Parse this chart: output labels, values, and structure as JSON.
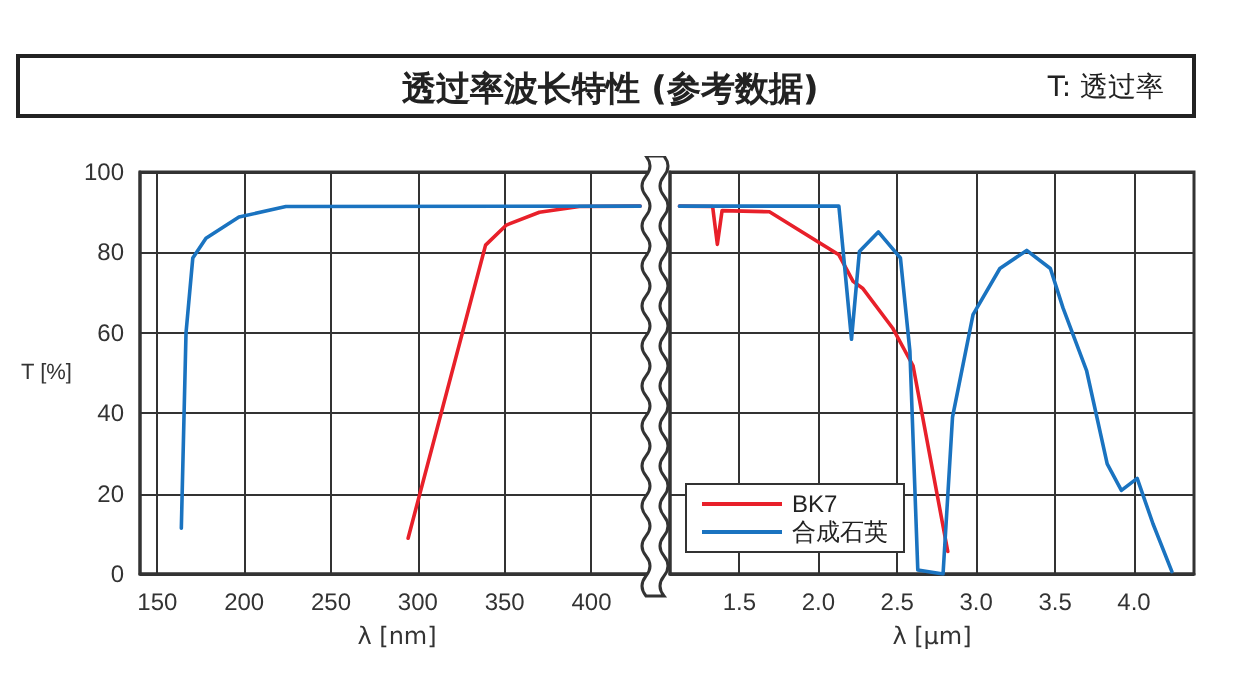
{
  "chart_data": [
    {
      "type": "line",
      "title": "透过率波长特性 (参考数据)",
      "annotations": [
        "T: 透过率"
      ],
      "xlabel": "λ [nm]",
      "ylabel": "T [%]",
      "xlim": [
        140,
        436
      ],
      "xticks": [
        150,
        200,
        250,
        300,
        350,
        400
      ],
      "ylim": [
        0,
        100
      ],
      "yticks": [
        0,
        20,
        40,
        60,
        80,
        100
      ],
      "grid": true,
      "legend": false,
      "marker": "none",
      "line_style": "solid",
      "series": [
        {
          "color": "#e8202a",
          "x": [
            294.4,
            339,
            351,
            370,
            393,
            428
          ],
          "values": [
            8.9,
            81.8,
            86.8,
            90,
            91.4,
            91.5
          ]
        },
        {
          "color": "#1a73c0",
          "x": [
            163.8,
            166.5,
            170.4,
            178,
            197,
            224,
            428
          ],
          "values": [
            11.4,
            60,
            78.6,
            83.5,
            88.8,
            91.4,
            91.5
          ]
        }
      ]
    },
    {
      "type": "line",
      "xlabel": "λ [μm]",
      "xlim": [
        1.06,
        4.38
      ],
      "xticks": [
        1.5,
        {
          "value": 2,
          "label": "2.0"
        },
        2.5,
        {
          "value": 3,
          "label": "3.0"
        },
        3.5,
        {
          "value": 4,
          "label": "4.0"
        }
      ],
      "ylim": [
        0,
        100
      ],
      "yticks": [
        0,
        20,
        40,
        60,
        80,
        100
      ],
      "tick_labels": "x",
      "grid": true,
      "legend": "bottom left",
      "marker": "none",
      "line_style": "solid",
      "series": [
        {
          "name": "BK7",
          "color": "#e8202a",
          "x": [
            1.12,
            1.33,
            1.36,
            1.39,
            1.69,
            2.13,
            2.22,
            2.28,
            2.47,
            2.6,
            2.82
          ],
          "values": [
            91.5,
            91.4,
            82,
            90.4,
            90.1,
            79.4,
            72.8,
            71.1,
            61.2,
            51.8,
            5.6
          ]
        },
        {
          "name": "合成石英",
          "color": "#1a73c0",
          "x": [
            1.12,
            2.13,
            2.21,
            2.26,
            2.38,
            2.52,
            2.58,
            2.63,
            2.79,
            2.85,
            2.98,
            3.15,
            3.32,
            3.47,
            3.55,
            3.7,
            3.83,
            3.92,
            4.02,
            4.12,
            4.24
          ],
          "values": [
            91.5,
            91.5,
            58.4,
            80.2,
            85.1,
            78.6,
            55.4,
            1,
            0,
            39,
            64.5,
            76,
            80.5,
            76,
            66.2,
            50.5,
            27.4,
            20.8,
            23.8,
            12.5,
            0.6
          ]
        }
      ]
    }
  ]
}
